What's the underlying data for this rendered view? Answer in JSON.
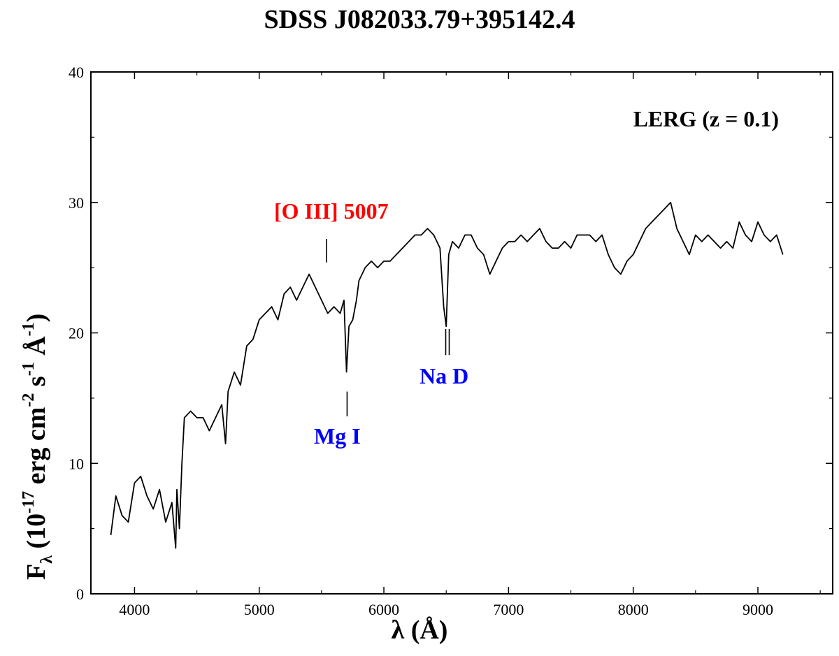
{
  "chart_data": {
    "type": "line",
    "title": "SDSS J082033.79+395142.4",
    "xlabel": "λ (Å)",
    "ylabel_parts": {
      "base": "F",
      "base_sub": "λ",
      "open": "(10",
      "exp1": "-17",
      "unit1": "erg cm",
      "exp2": "-2",
      "unit2": "s",
      "exp3": "-1",
      "unit3": "Å",
      "exp4": "-1",
      "close": ")"
    },
    "xlim": [
      3650,
      9600
    ],
    "ylim": [
      0,
      40
    ],
    "xticks": [
      4000,
      5000,
      6000,
      7000,
      8000,
      9000
    ],
    "yticks": [
      0,
      10,
      20,
      30,
      40
    ],
    "grid": false,
    "legend_label": "LERG (z = 0.1)",
    "colors": {
      "line": "#000000",
      "emission": "#ff0000",
      "absorption": "#0000ff"
    },
    "series": [
      {
        "x": [
          3810,
          3850,
          3900,
          3950,
          4000,
          4050,
          4100,
          4150,
          4200,
          4250,
          4300,
          4330,
          4340,
          4360,
          4380,
          4400,
          4450,
          4500,
          4550,
          4600,
          4650,
          4700,
          4730,
          4750,
          4800,
          4850,
          4900,
          4950,
          5000,
          5050,
          5100,
          5150,
          5200,
          5250,
          5300,
          5350,
          5400,
          5450,
          5500,
          5550,
          5600,
          5650,
          5680,
          5700,
          5720,
          5750,
          5780,
          5800,
          5850,
          5900,
          5950,
          6000,
          6050,
          6100,
          6150,
          6200,
          6250,
          6300,
          6350,
          6400,
          6450,
          6480,
          6500,
          6520,
          6550,
          6600,
          6650,
          6700,
          6750,
          6800,
          6850,
          6900,
          6950,
          7000,
          7050,
          7100,
          7150,
          7200,
          7250,
          7300,
          7350,
          7400,
          7450,
          7500,
          7550,
          7600,
          7650,
          7700,
          7750,
          7800,
          7850,
          7900,
          7950,
          8000,
          8050,
          8100,
          8150,
          8200,
          8250,
          8300,
          8350,
          8400,
          8450,
          8500,
          8550,
          8600,
          8650,
          8700,
          8750,
          8800,
          8850,
          8900,
          8950,
          9000,
          9050,
          9100,
          9150,
          9200
        ],
        "y": [
          4.5,
          7.5,
          6.0,
          5.5,
          8.5,
          9.0,
          7.5,
          6.5,
          8.0,
          5.5,
          7.0,
          3.5,
          8.0,
          5.0,
          10.0,
          13.5,
          14.0,
          13.5,
          13.5,
          12.5,
          13.5,
          14.5,
          11.5,
          15.5,
          17.0,
          16.0,
          19.0,
          19.5,
          21.0,
          21.5,
          22.0,
          21.0,
          23.0,
          23.5,
          22.5,
          23.5,
          24.5,
          23.5,
          22.5,
          21.5,
          22.0,
          21.5,
          22.5,
          17.0,
          20.5,
          21.0,
          22.5,
          24.0,
          25.0,
          25.5,
          25.0,
          25.5,
          25.5,
          26.0,
          26.5,
          27.0,
          27.5,
          27.5,
          28.0,
          27.5,
          26.5,
          22.0,
          20.5,
          26.0,
          27.0,
          26.5,
          27.5,
          27.5,
          26.5,
          26.0,
          24.5,
          25.5,
          26.5,
          27.0,
          27.0,
          27.5,
          27.0,
          27.5,
          28.0,
          27.0,
          26.5,
          26.5,
          27.0,
          26.5,
          27.5,
          27.5,
          27.5,
          27.0,
          27.5,
          26.0,
          25.0,
          24.5,
          25.5,
          26.0,
          27.0,
          28.0,
          28.5,
          29.0,
          29.5,
          30.0,
          28.0,
          27.0,
          26.0,
          27.5,
          27.0,
          27.5,
          27.0,
          26.5,
          27.0,
          26.5,
          28.5,
          27.5,
          27.0,
          28.5,
          27.5,
          27.0,
          27.5,
          26.0
        ]
      }
    ],
    "annotations": [
      {
        "label": "[O III] 5007",
        "x": 5540,
        "type": "emission",
        "tick_y": [
          25.4,
          27.2
        ]
      },
      {
        "label": "Mg I",
        "x": 5705,
        "type": "absorption",
        "tick_y": [
          13.6,
          15.5
        ]
      },
      {
        "label": "Na D",
        "x": 6510,
        "type": "absorption",
        "tick_y": [
          18.3,
          20.3
        ],
        "double": true
      }
    ]
  }
}
